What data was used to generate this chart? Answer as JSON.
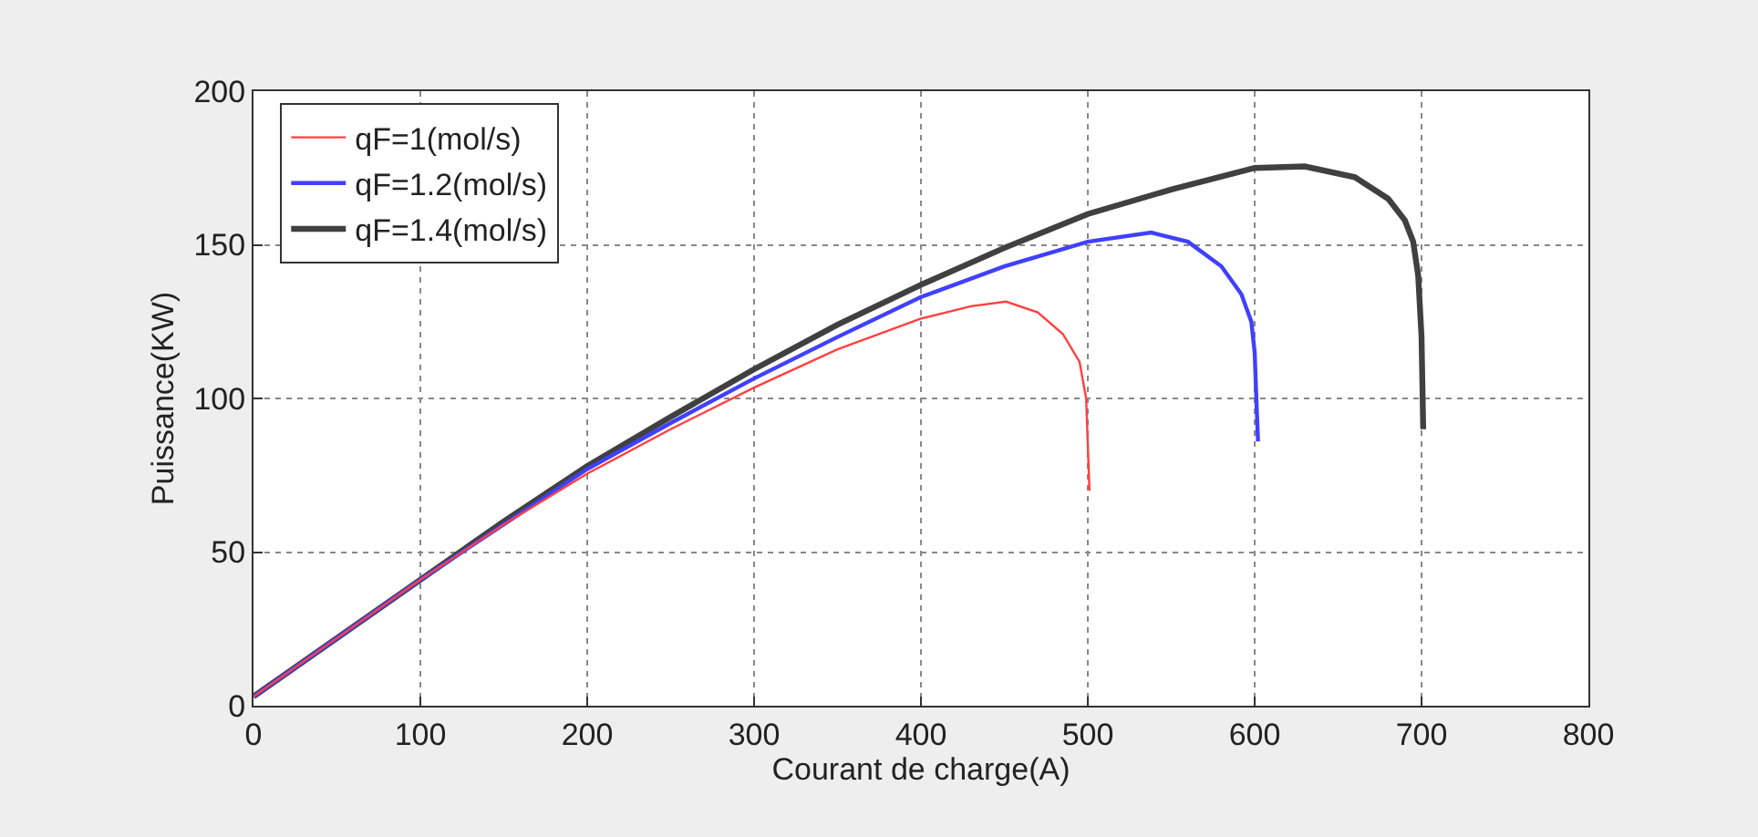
{
  "chart_data": {
    "type": "line",
    "xlabel": "Courant de charge(A)",
    "ylabel": "Puissance(KW)",
    "xlim": [
      0,
      800
    ],
    "ylim": [
      0,
      200
    ],
    "xticks": [
      0,
      100,
      200,
      300,
      400,
      500,
      600,
      700,
      800
    ],
    "yticks": [
      0,
      50,
      100,
      150,
      200
    ],
    "grid": true,
    "legend": "top left",
    "line_style": "solid",
    "marker": "none",
    "series": [
      {
        "name": "qF=1(mol/s)",
        "color": "#ff4040",
        "x": [
          0,
          50,
          100,
          150,
          200,
          250,
          300,
          350,
          400,
          430,
          451,
          470,
          485,
          495,
          499,
          500,
          501
        ],
        "values": [
          3,
          22,
          41,
          59,
          75.5,
          90,
          103.5,
          116,
          126,
          130,
          131.5,
          128,
          121,
          112,
          100,
          85,
          70
        ]
      },
      {
        "name": "qF=1.2(mol/s)",
        "color": "#4040ff",
        "x": [
          0,
          50,
          100,
          150,
          200,
          250,
          300,
          350,
          400,
          450,
          500,
          538,
          560,
          580,
          592,
          598,
          600,
          601,
          602
        ],
        "values": [
          3,
          22,
          41,
          59,
          77,
          92,
          106.5,
          120,
          133,
          143,
          151,
          154,
          151,
          143,
          134,
          125,
          115,
          100,
          86
        ]
      },
      {
        "name": "qF=1.4(mol/s)",
        "color": "#404040",
        "x": [
          0,
          50,
          100,
          150,
          200,
          250,
          300,
          350,
          400,
          450,
          500,
          550,
          600,
          630,
          660,
          680,
          690,
          695,
          698,
          700,
          701
        ],
        "values": [
          3,
          22,
          41,
          60,
          78,
          94,
          109.5,
          124,
          137,
          149,
          160,
          168,
          175,
          175.5,
          172,
          165,
          158,
          151,
          140,
          120,
          90
        ]
      }
    ]
  }
}
